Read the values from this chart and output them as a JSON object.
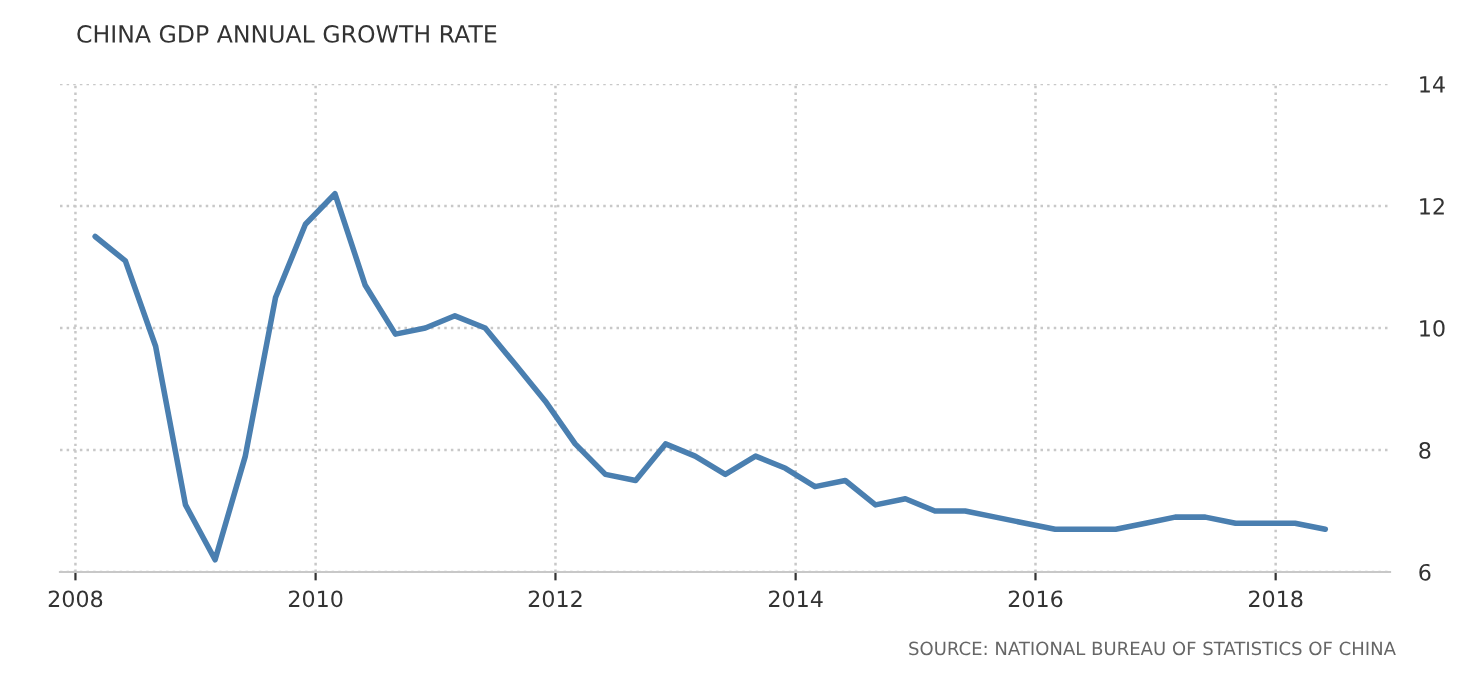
{
  "chart_data": {
    "type": "line",
    "title": "CHINA GDP ANNUAL GROWTH RATE",
    "x": [
      "2008-03",
      "2008-06",
      "2008-09",
      "2008-12",
      "2009-03",
      "2009-06",
      "2009-09",
      "2009-12",
      "2010-03",
      "2010-06",
      "2010-09",
      "2010-12",
      "2011-03",
      "2011-06",
      "2011-09",
      "2011-12",
      "2012-03",
      "2012-06",
      "2012-09",
      "2012-12",
      "2013-03",
      "2013-06",
      "2013-09",
      "2013-12",
      "2014-03",
      "2014-06",
      "2014-09",
      "2014-12",
      "2015-03",
      "2015-06",
      "2015-09",
      "2015-12",
      "2016-03",
      "2016-06",
      "2016-09",
      "2016-12",
      "2017-03",
      "2017-06",
      "2017-09",
      "2017-12",
      "2018-03",
      "2018-06"
    ],
    "series": [
      {
        "color": "#4a7fb0",
        "values": [
          11.5,
          11.1,
          9.7,
          7.1,
          6.2,
          7.9,
          10.5,
          11.7,
          12.2,
          10.7,
          9.9,
          10.0,
          10.2,
          10.0,
          9.4,
          8.8,
          8.1,
          7.6,
          7.5,
          8.1,
          7.9,
          7.6,
          7.9,
          7.7,
          7.4,
          7.5,
          7.1,
          7.2,
          7.0,
          7.0,
          6.9,
          6.8,
          6.7,
          6.7,
          6.7,
          6.8,
          6.9,
          6.9,
          6.8,
          6.8,
          6.8,
          6.7
        ]
      }
    ],
    "xlim": [
      "2007-11-15",
      "2018-12-15"
    ],
    "xticks": [
      {
        "value": "2008-01-01",
        "label": "2008"
      },
      {
        "value": "2010-01-01",
        "label": "2010"
      },
      {
        "value": "2012-01-01",
        "label": "2012"
      },
      {
        "value": "2014-01-01",
        "label": "2014"
      },
      {
        "value": "2016-01-01",
        "label": "2016"
      },
      {
        "value": "2018-01-01",
        "label": "2018"
      }
    ],
    "ylim": [
      6,
      14
    ],
    "yticks": [
      6,
      8,
      10,
      12,
      14
    ],
    "grid": true,
    "marker": "none",
    "line_style": "solid",
    "legend": false,
    "annotations": [
      "SOURCE: NATIONAL BUREAU OF STATISTICS OF CHINA"
    ]
  }
}
